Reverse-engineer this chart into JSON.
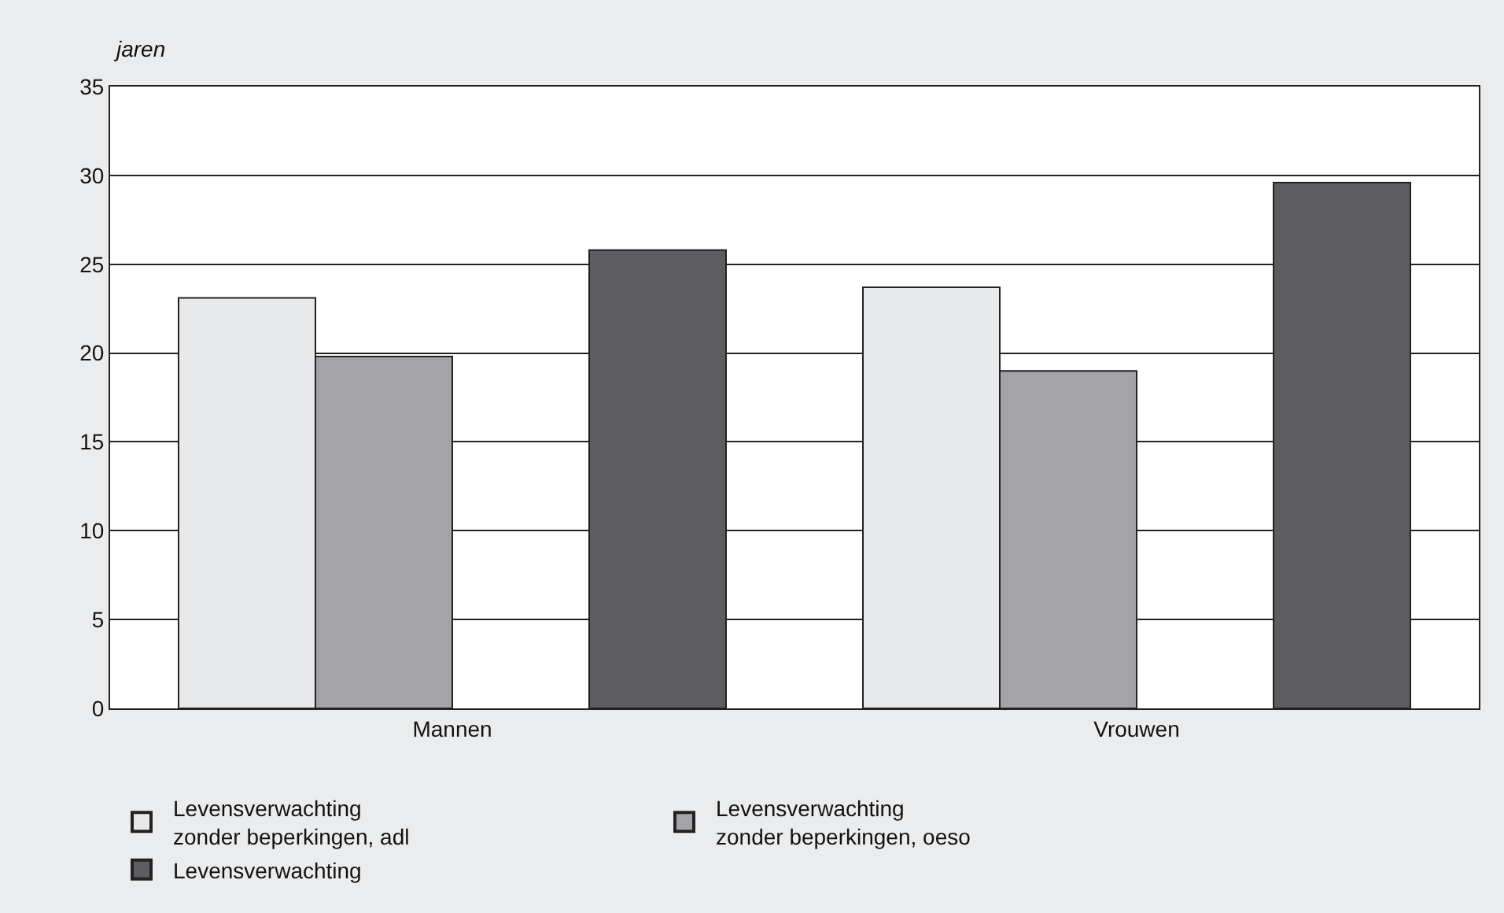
{
  "chart_data": {
    "type": "bar",
    "ylabel": "jaren",
    "categories": [
      "Mannen",
      "Vrouwen"
    ],
    "series": [
      {
        "name": "Levensverwachting\nzonder beperkingen, adl",
        "color": "#e8e9ea",
        "values": [
          23.1,
          23.7
        ]
      },
      {
        "name": "Levensverwachting\nzonder beperkingen, oeso",
        "color": "#a4a3a7",
        "values": [
          19.8,
          19.0
        ]
      },
      {
        "name": "Levensverwachting",
        "color": "#5d5c61",
        "values": [
          25.8,
          29.6
        ]
      }
    ],
    "ylim": [
      0,
      35
    ],
    "yticks": [
      0,
      5,
      10,
      15,
      20,
      25,
      30,
      35
    ],
    "grid": "y",
    "legend": "bottom"
  }
}
